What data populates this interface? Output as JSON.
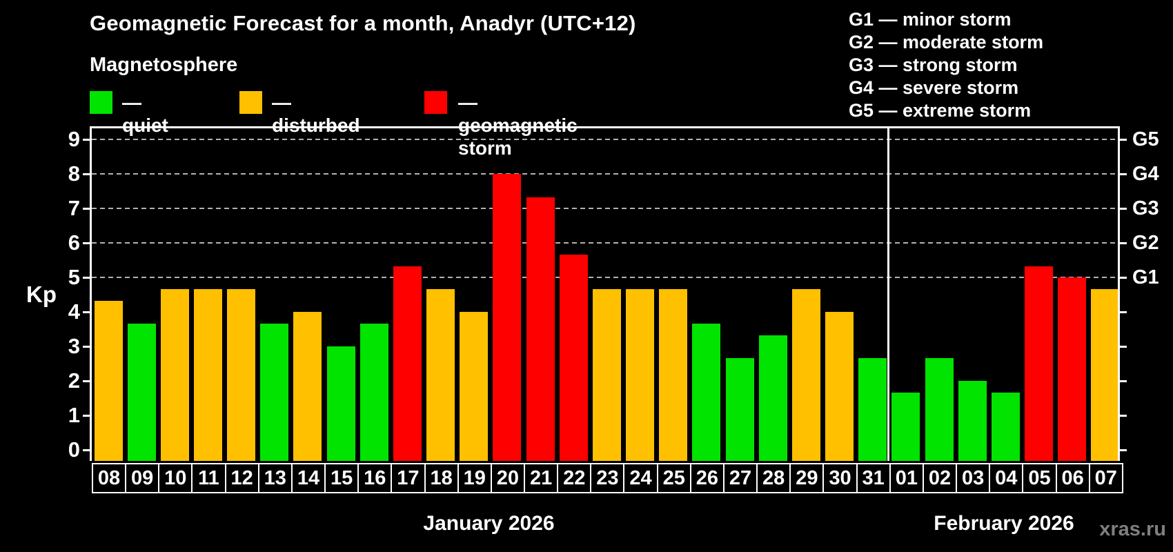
{
  "title": "Geomagnetic Forecast for a month, Anadyr (UTC+12)",
  "subtitle": "Magnetosphere",
  "legend": [
    {
      "label": "— quiet",
      "level": "quiet",
      "color": "#00e400"
    },
    {
      "label": "— disturbed",
      "level": "disturbed",
      "color": "#ffc000"
    },
    {
      "label": "— geomagnetic storm",
      "level": "storm",
      "color": "#ff0000"
    }
  ],
  "storm_scale": [
    {
      "code": "G1",
      "label": "G1 — minor storm"
    },
    {
      "code": "G2",
      "label": "G2 — moderate storm"
    },
    {
      "code": "G3",
      "label": "G3 — strong storm"
    },
    {
      "code": "G4",
      "label": "G4 — severe storm"
    },
    {
      "code": "G5",
      "label": "G5 — extreme storm"
    }
  ],
  "watermark": "xras.ru",
  "colors": {
    "background": "#000000",
    "text": "#ffffff",
    "quiet": "#00e400",
    "disturbed": "#ffc000",
    "storm": "#ff0000",
    "grid": "#b3b3b3",
    "watermark": "#7f7f7f"
  },
  "chart_data": {
    "type": "bar",
    "title": "Geomagnetic Forecast for a month, Anadyr (UTC+12)",
    "xlabel": "",
    "ylabel": "Kp",
    "ylim": [
      0,
      9.7
    ],
    "yticks": [
      0,
      1,
      2,
      3,
      4,
      5,
      6,
      7,
      8,
      9
    ],
    "gridlines_at_kp": [
      5,
      6,
      7,
      8,
      9
    ],
    "grid": "dashed, only at Kp 5-9",
    "legend_position": "top-left",
    "right_axis_labels": [
      {
        "kp": 5,
        "label": "G1"
      },
      {
        "kp": 6,
        "label": "G2"
      },
      {
        "kp": 7,
        "label": "G3"
      },
      {
        "kp": 8,
        "label": "G4"
      },
      {
        "kp": 9,
        "label": "G5"
      }
    ],
    "months": [
      {
        "label": "January 2026",
        "bars": [
          {
            "day": "08",
            "kp": 4.33,
            "level": "disturbed"
          },
          {
            "day": "09",
            "kp": 3.67,
            "level": "quiet"
          },
          {
            "day": "10",
            "kp": 4.67,
            "level": "disturbed"
          },
          {
            "day": "11",
            "kp": 4.67,
            "level": "disturbed"
          },
          {
            "day": "12",
            "kp": 4.67,
            "level": "disturbed"
          },
          {
            "day": "13",
            "kp": 3.67,
            "level": "quiet"
          },
          {
            "day": "14",
            "kp": 4.0,
            "level": "disturbed"
          },
          {
            "day": "15",
            "kp": 3.0,
            "level": "quiet"
          },
          {
            "day": "16",
            "kp": 3.67,
            "level": "quiet"
          },
          {
            "day": "17",
            "kp": 5.33,
            "level": "storm"
          },
          {
            "day": "18",
            "kp": 4.67,
            "level": "disturbed"
          },
          {
            "day": "19",
            "kp": 4.0,
            "level": "disturbed"
          },
          {
            "day": "20",
            "kp": 8.0,
            "level": "storm"
          },
          {
            "day": "21",
            "kp": 7.33,
            "level": "storm"
          },
          {
            "day": "22",
            "kp": 5.67,
            "level": "storm"
          },
          {
            "day": "23",
            "kp": 4.67,
            "level": "disturbed"
          },
          {
            "day": "24",
            "kp": 4.67,
            "level": "disturbed"
          },
          {
            "day": "25",
            "kp": 4.67,
            "level": "disturbed"
          },
          {
            "day": "26",
            "kp": 3.67,
            "level": "quiet"
          },
          {
            "day": "27",
            "kp": 2.67,
            "level": "quiet"
          },
          {
            "day": "28",
            "kp": 3.33,
            "level": "quiet"
          },
          {
            "day": "29",
            "kp": 4.67,
            "level": "disturbed"
          },
          {
            "day": "30",
            "kp": 4.0,
            "level": "disturbed"
          },
          {
            "day": "31",
            "kp": 2.67,
            "level": "quiet"
          }
        ]
      },
      {
        "label": "February 2026",
        "bars": [
          {
            "day": "01",
            "kp": 1.67,
            "level": "quiet"
          },
          {
            "day": "02",
            "kp": 2.67,
            "level": "quiet"
          },
          {
            "day": "03",
            "kp": 2.0,
            "level": "quiet"
          },
          {
            "day": "04",
            "kp": 1.67,
            "level": "quiet"
          },
          {
            "day": "05",
            "kp": 5.33,
            "level": "storm"
          },
          {
            "day": "06",
            "kp": 5.0,
            "level": "storm"
          },
          {
            "day": "07",
            "kp": 4.67,
            "level": "disturbed"
          }
        ]
      }
    ]
  }
}
